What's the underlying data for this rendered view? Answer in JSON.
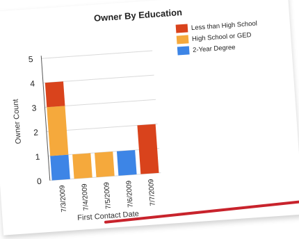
{
  "chart_data": {
    "type": "bar",
    "stacked": true,
    "title": "Owner By Education",
    "xlabel": "First Contact Date",
    "ylabel": "Owner Count",
    "categories": [
      "7/3/2009",
      "7/4/2009",
      "7/5/2009",
      "7/6/2009",
      "7/7/2009"
    ],
    "ylim": [
      0,
      5
    ],
    "yticks": [
      "0",
      "1",
      "2",
      "3",
      "4",
      "5"
    ],
    "grid": true,
    "legend_position": "top-right",
    "series": [
      {
        "name": "2-Year Degree",
        "color": "#3d85e6",
        "values": [
          1,
          0,
          0,
          1,
          0
        ]
      },
      {
        "name": "High School or GED",
        "color": "#f5a93c",
        "values": [
          2,
          1,
          1,
          0,
          0
        ]
      },
      {
        "name": "Less than High School",
        "color": "#d9431c",
        "values": [
          1,
          0,
          0,
          0,
          2
        ]
      }
    ],
    "legend_order": [
      "Less than High School",
      "High School or GED",
      "2-Year Degree"
    ]
  }
}
